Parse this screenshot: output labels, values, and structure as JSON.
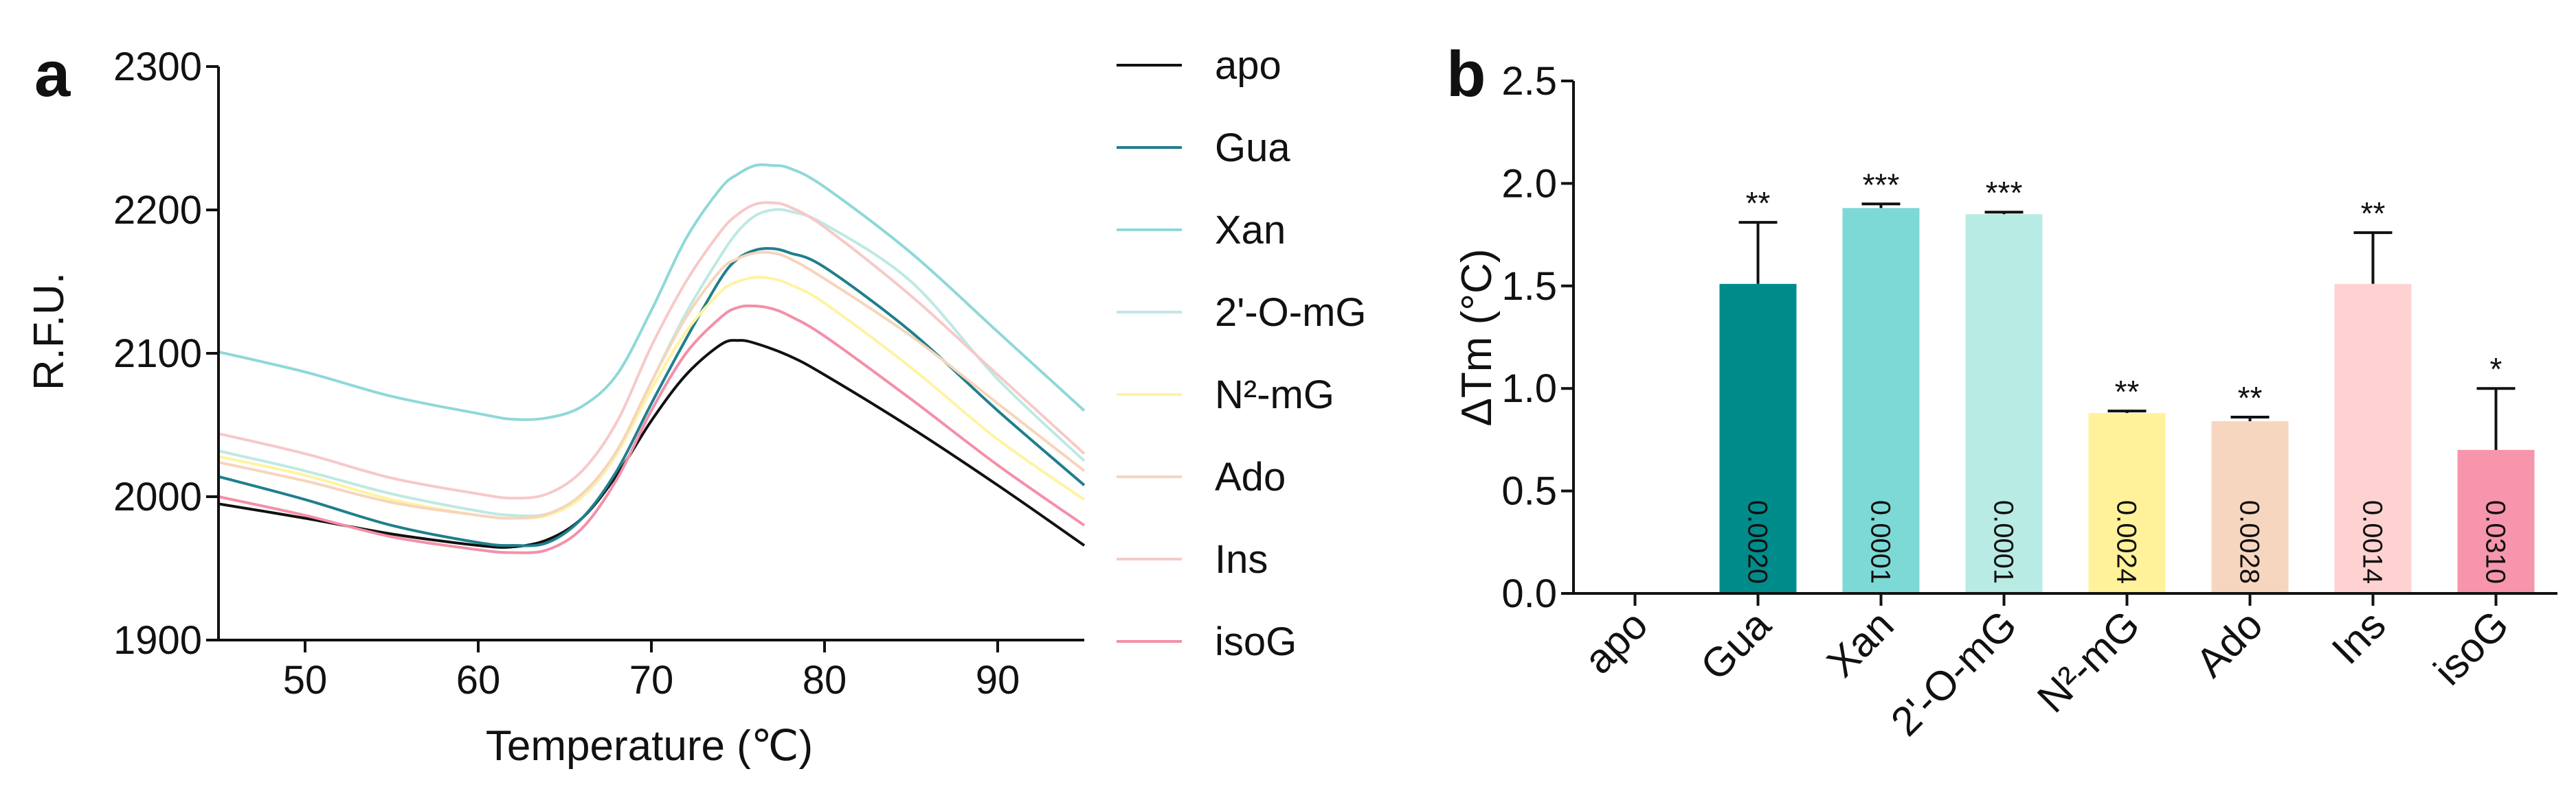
{
  "chart_data": [
    {
      "panel": "a",
      "type": "line",
      "xlabel": "Temperature (℃)",
      "ylabel": "R.F.U.",
      "xlim": [
        45,
        95
      ],
      "ylim": [
        1900,
        2300
      ],
      "xticks": [
        50,
        60,
        70,
        80,
        90
      ],
      "yticks": [
        1900,
        2000,
        2100,
        2200,
        2300
      ],
      "legend_position": "right",
      "grid": false,
      "series": [
        {
          "name": "apo",
          "color": "#111111",
          "points": [
            [
              45,
              1995
            ],
            [
              50,
              1985
            ],
            [
              55,
              1974
            ],
            [
              60,
              1966
            ],
            [
              62,
              1965
            ],
            [
              64,
              1970
            ],
            [
              66,
              1985
            ],
            [
              68,
              2015
            ],
            [
              70,
              2053
            ],
            [
              72,
              2085
            ],
            [
              74,
              2106
            ],
            [
              75,
              2109
            ],
            [
              76,
              2107
            ],
            [
              78,
              2098
            ],
            [
              80,
              2085
            ],
            [
              85,
              2048
            ],
            [
              90,
              2008
            ],
            [
              95,
              1966
            ]
          ]
        },
        {
          "name": "Gua",
          "color": "#1F7F8C",
          "points": [
            [
              45,
              2014
            ],
            [
              50,
              1998
            ],
            [
              55,
              1980
            ],
            [
              60,
              1968
            ],
            [
              62,
              1966
            ],
            [
              64,
              1968
            ],
            [
              66,
              1985
            ],
            [
              68,
              2018
            ],
            [
              70,
              2065
            ],
            [
              72,
              2110
            ],
            [
              74,
              2152
            ],
            [
              75,
              2166
            ],
            [
              76,
              2172
            ],
            [
              77,
              2173
            ],
            [
              78,
              2170
            ],
            [
              80,
              2160
            ],
            [
              85,
              2115
            ],
            [
              90,
              2060
            ],
            [
              95,
              2008
            ]
          ]
        },
        {
          "name": "Xan",
          "color": "#8FD8D8",
          "points": [
            [
              45,
              2101
            ],
            [
              50,
              2087
            ],
            [
              55,
              2070
            ],
            [
              60,
              2058
            ],
            [
              62,
              2054
            ],
            [
              64,
              2055
            ],
            [
              66,
              2063
            ],
            [
              68,
              2085
            ],
            [
              70,
              2130
            ],
            [
              72,
              2180
            ],
            [
              74,
              2215
            ],
            [
              75,
              2225
            ],
            [
              76,
              2231
            ],
            [
              77,
              2231
            ],
            [
              78,
              2229
            ],
            [
              80,
              2216
            ],
            [
              85,
              2170
            ],
            [
              90,
              2115
            ],
            [
              95,
              2060
            ]
          ]
        },
        {
          "name": "2'-O-mG",
          "color": "#BEE9E3",
          "points": [
            [
              45,
              2032
            ],
            [
              50,
              2018
            ],
            [
              55,
              2002
            ],
            [
              60,
              1990
            ],
            [
              62,
              1987
            ],
            [
              64,
              1988
            ],
            [
              66,
              2000
            ],
            [
              68,
              2030
            ],
            [
              70,
              2080
            ],
            [
              72,
              2128
            ],
            [
              74,
              2168
            ],
            [
              75,
              2185
            ],
            [
              76,
              2196
            ],
            [
              77,
              2200
            ],
            [
              78,
              2199
            ],
            [
              80,
              2190
            ],
            [
              85,
              2150
            ],
            [
              90,
              2082
            ],
            [
              95,
              2025
            ]
          ]
        },
        {
          "name": "N²-mG",
          "color": "#FFF3A0",
          "points": [
            [
              45,
              2028
            ],
            [
              50,
              2015
            ],
            [
              55,
              1998
            ],
            [
              60,
              1987
            ],
            [
              62,
              1985
            ],
            [
              64,
              1987
            ],
            [
              66,
              2000
            ],
            [
              68,
              2030
            ],
            [
              70,
              2075
            ],
            [
              72,
              2115
            ],
            [
              74,
              2143
            ],
            [
              75,
              2150
            ],
            [
              76,
              2153
            ],
            [
              77,
              2152
            ],
            [
              78,
              2148
            ],
            [
              80,
              2135
            ],
            [
              85,
              2090
            ],
            [
              90,
              2040
            ],
            [
              95,
              1998
            ]
          ]
        },
        {
          "name": "Ado",
          "color": "#F6D5BC",
          "points": [
            [
              45,
              2024
            ],
            [
              50,
              2011
            ],
            [
              55,
              1996
            ],
            [
              60,
              1987
            ],
            [
              62,
              1985
            ],
            [
              64,
              1988
            ],
            [
              66,
              2002
            ],
            [
              68,
              2032
            ],
            [
              70,
              2080
            ],
            [
              72,
              2125
            ],
            [
              74,
              2158
            ],
            [
              75,
              2166
            ],
            [
              76,
              2170
            ],
            [
              77,
              2170
            ],
            [
              78,
              2166
            ],
            [
              80,
              2152
            ],
            [
              85,
              2112
            ],
            [
              90,
              2065
            ],
            [
              95,
              2018
            ]
          ]
        },
        {
          "name": "Ins",
          "color": "#F7C9C9",
          "points": [
            [
              45,
              2044
            ],
            [
              50,
              2030
            ],
            [
              55,
              2013
            ],
            [
              60,
              2002
            ],
            [
              62,
              1999
            ],
            [
              64,
              2002
            ],
            [
              66,
              2018
            ],
            [
              68,
              2052
            ],
            [
              70,
              2105
            ],
            [
              72,
              2150
            ],
            [
              74,
              2185
            ],
            [
              75,
              2197
            ],
            [
              76,
              2204
            ],
            [
              77,
              2205
            ],
            [
              78,
              2202
            ],
            [
              80,
              2188
            ],
            [
              85,
              2140
            ],
            [
              90,
              2085
            ],
            [
              95,
              2030
            ]
          ]
        },
        {
          "name": "isoG",
          "color": "#F48FA8",
          "points": [
            [
              45,
              2000
            ],
            [
              50,
              1987
            ],
            [
              55,
              1972
            ],
            [
              60,
              1963
            ],
            [
              62,
              1961
            ],
            [
              64,
              1963
            ],
            [
              66,
              1978
            ],
            [
              68,
              2012
            ],
            [
              70,
              2060
            ],
            [
              72,
              2100
            ],
            [
              74,
              2125
            ],
            [
              75,
              2132
            ],
            [
              76,
              2133
            ],
            [
              77,
              2131
            ],
            [
              78,
              2126
            ],
            [
              80,
              2112
            ],
            [
              85,
              2068
            ],
            [
              90,
              2022
            ],
            [
              95,
              1980
            ]
          ]
        }
      ]
    },
    {
      "panel": "b",
      "type": "bar",
      "ylabel": "ΔTm (°C)",
      "ylim": [
        0,
        2.5
      ],
      "yticks": [
        "0.0",
        "0.5",
        "1.0",
        "1.5",
        "2.0",
        "2.5"
      ],
      "grid": false,
      "categories": [
        "apo",
        "Gua",
        "Xan",
        "2'-O-mG",
        "N²-mG",
        "Ado",
        "Ins",
        "isoG"
      ],
      "values": [
        0,
        1.51,
        1.88,
        1.85,
        0.88,
        0.84,
        1.51,
        0.7
      ],
      "errors": [
        0,
        0.3,
        0.02,
        0.01,
        0.01,
        0.02,
        0.25,
        0.3
      ],
      "significance": [
        "",
        "**",
        "***",
        "***",
        "**",
        "**",
        "**",
        "*"
      ],
      "p_values": [
        "",
        "0.0020",
        "0.0001",
        "0.0001",
        "0.0024",
        "0.0028",
        "0.0014",
        "0.0310"
      ],
      "colors": [
        "#FFFFFF",
        "#008B8B",
        "#7DD9D6",
        "#B8EBE4",
        "#FFF29A",
        "#F7D6C0",
        "#FFD2D2",
        "#F795AC"
      ]
    }
  ]
}
